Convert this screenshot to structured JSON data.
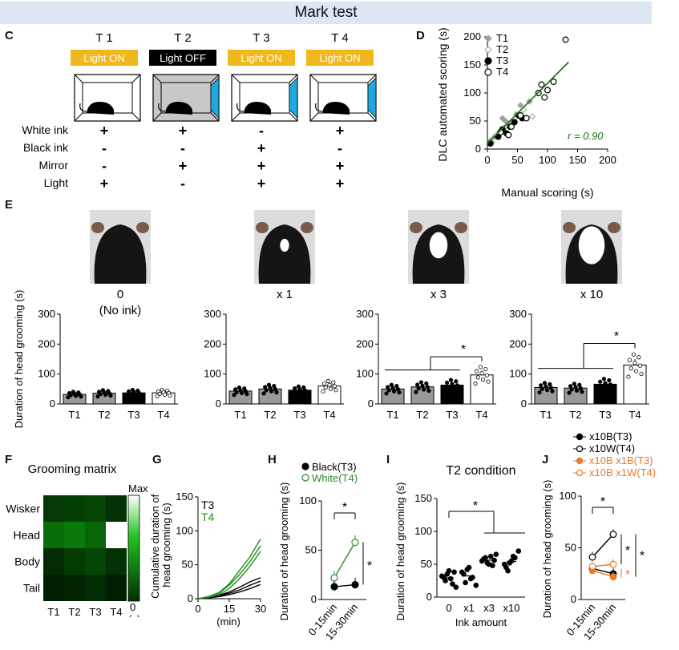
{
  "header": {
    "title": "Mark test"
  },
  "panel_labels": {
    "c": "C",
    "d": "D",
    "e": "E",
    "f": "F",
    "g": "G",
    "h": "H",
    "i": "I",
    "j": "J"
  },
  "panel_c": {
    "trials": [
      {
        "label": "T 1",
        "light": "Light ON",
        "light_color": "#f0b81c",
        "box_fill": "#ffffff",
        "mirror": false
      },
      {
        "label": "T 2",
        "light": "Light OFF",
        "light_color": "#000000",
        "box_fill": "#c8c8c8",
        "mirror": true
      },
      {
        "label": "T 3",
        "light": "Light ON",
        "light_color": "#f0b81c",
        "box_fill": "#ffffff",
        "mirror": true
      },
      {
        "label": "T 4",
        "light": "Light ON",
        "light_color": "#f0b81c",
        "box_fill": "#ffffff",
        "mirror": true
      }
    ],
    "rows": [
      {
        "label": "White ink",
        "values": [
          "+",
          "+",
          "-",
          "+"
        ]
      },
      {
        "label": "Black ink",
        "values": [
          "-",
          "-",
          "+",
          "-"
        ]
      },
      {
        "label": "Mirror",
        "values": [
          "-",
          "+",
          "+",
          "+"
        ]
      },
      {
        "label": "Light",
        "values": [
          "+",
          "-",
          "+",
          "+"
        ]
      }
    ]
  },
  "chart_data": [
    {
      "id": "D",
      "type": "scatter",
      "xlabel": "Manual scoring (s)",
      "ylabel": "DLC automated scoring (s)",
      "xlim": [
        0,
        200
      ],
      "ylim": [
        0,
        200
      ],
      "xticks": [
        "0",
        "50",
        "100",
        "150",
        "200"
      ],
      "yticks": [
        "0",
        "50",
        "100",
        "150",
        "200"
      ],
      "annotation": "r = 0.90",
      "legend": [
        "T1",
        "T2",
        "T3",
        "T4"
      ],
      "legend_position": "top-left",
      "fit_line": {
        "x": [
          0,
          135
        ],
        "y": [
          10,
          155
        ]
      },
      "series": [
        {
          "name": "T1",
          "marker": "diamond",
          "color": "#a0a0a0",
          "points": [
            [
              5,
              15
            ],
            [
              12,
              22
            ],
            [
              20,
              30
            ],
            [
              25,
              55
            ],
            [
              30,
              50
            ],
            [
              48,
              62
            ],
            [
              55,
              78
            ],
            [
              70,
              85
            ]
          ]
        },
        {
          "name": "T2",
          "marker": "open-diamond",
          "color": "#a0a0a0",
          "points": [
            [
              8,
              12
            ],
            [
              15,
              25
            ],
            [
              28,
              38
            ],
            [
              35,
              45
            ],
            [
              42,
              48
            ],
            [
              60,
              70
            ],
            [
              75,
              58
            ]
          ]
        },
        {
          "name": "T3",
          "marker": "filled-circle",
          "color": "#000000",
          "points": [
            [
              5,
              10
            ],
            [
              18,
              22
            ],
            [
              25,
              35
            ],
            [
              32,
              28
            ],
            [
              38,
              40
            ],
            [
              45,
              48
            ],
            [
              52,
              60
            ],
            [
              58,
              55
            ]
          ]
        },
        {
          "name": "T4",
          "marker": "open-circle",
          "color": "#000000",
          "points": [
            [
              22,
              30
            ],
            [
              35,
              25
            ],
            [
              40,
              40
            ],
            [
              55,
              60
            ],
            [
              65,
              55
            ],
            [
              85,
              100
            ],
            [
              90,
              115
            ],
            [
              95,
              92
            ],
            [
              100,
              105
            ],
            [
              110,
              120
            ],
            [
              130,
              195
            ]
          ]
        }
      ]
    },
    {
      "id": "E",
      "type": "bar",
      "ylabel": "Duration of head grooming (s)",
      "ylim": [
        0,
        300
      ],
      "yticks": [
        "0",
        "100",
        "200",
        "300"
      ],
      "categories": [
        "T1",
        "T2",
        "T3",
        "T4"
      ],
      "conditions": [
        {
          "label": "0",
          "sublabel": "(No ink)",
          "values": [
            32,
            36,
            37,
            37
          ],
          "sig": "",
          "mark_width": 0
        },
        {
          "label": "x 1",
          "sublabel": "",
          "values": [
            43,
            50,
            46,
            60
          ],
          "sig": "",
          "mark_width": 18
        },
        {
          "label": "x 3",
          "sublabel": "",
          "values": [
            50,
            57,
            63,
            97
          ],
          "sig": "*",
          "mark_width": 36
        },
        {
          "label": "x 10",
          "sublabel": "",
          "values": [
            55,
            53,
            66,
            130
          ],
          "sig": "*",
          "mark_width": 52
        }
      ]
    },
    {
      "id": "F",
      "type": "heatmap",
      "title": "Grooming matrix",
      "rows": [
        "Wisker",
        "Head",
        "Body",
        "Tail"
      ],
      "columns": [
        "T1",
        "T2",
        "T3",
        "T4"
      ],
      "values": [
        [
          0.18,
          0.22,
          0.25,
          0.15
        ],
        [
          0.45,
          0.5,
          0.4,
          1.0
        ],
        [
          0.12,
          0.2,
          0.25,
          0.15
        ],
        [
          0.05,
          0.08,
          0.12,
          0.05
        ]
      ],
      "colorbar": {
        "max_label": "Max",
        "min_label": "0",
        "unit": "(s)"
      }
    },
    {
      "id": "G",
      "type": "line",
      "ylabel": "Cumulative duration of head grooming (s)",
      "xlabel": "(min)",
      "xlim": [
        0,
        30
      ],
      "ylim": [
        0,
        150
      ],
      "xticks": [
        "0",
        "15",
        "30"
      ],
      "yticks": [
        "0",
        "50",
        "100",
        "150"
      ],
      "legend": [
        {
          "name": "T3",
          "color": "#000000"
        },
        {
          "name": "T4",
          "color": "#1f8a1f"
        }
      ],
      "series": [
        {
          "name": "T3",
          "color": "#000000",
          "points": [
            [
              0,
              0
            ],
            [
              5,
              2
            ],
            [
              10,
              5
            ],
            [
              15,
              10
            ],
            [
              20,
              17
            ],
            [
              25,
              25
            ],
            [
              30,
              31
            ]
          ]
        },
        {
          "name": "T3",
          "color": "#000000",
          "points": [
            [
              0,
              0
            ],
            [
              5,
              1
            ],
            [
              10,
              4
            ],
            [
              15,
              8
            ],
            [
              20,
              13
            ],
            [
              25,
              20
            ],
            [
              30,
              26
            ]
          ]
        },
        {
          "name": "T3",
          "color": "#000000",
          "points": [
            [
              0,
              0
            ],
            [
              5,
              1
            ],
            [
              10,
              3
            ],
            [
              15,
              6
            ],
            [
              20,
              10
            ],
            [
              25,
              15
            ],
            [
              30,
              21
            ]
          ]
        },
        {
          "name": "T4",
          "color": "#1f8a1f",
          "points": [
            [
              0,
              0
            ],
            [
              5,
              3
            ],
            [
              10,
              9
            ],
            [
              15,
              22
            ],
            [
              20,
              42
            ],
            [
              25,
              62
            ],
            [
              30,
              88
            ]
          ]
        },
        {
          "name": "T4",
          "color": "#1f8a1f",
          "points": [
            [
              0,
              0
            ],
            [
              5,
              3
            ],
            [
              10,
              8
            ],
            [
              15,
              20
            ],
            [
              20,
              36
            ],
            [
              25,
              55
            ],
            [
              30,
              78
            ]
          ]
        },
        {
          "name": "T4",
          "color": "#1f8a1f",
          "points": [
            [
              0,
              0
            ],
            [
              5,
              2
            ],
            [
              10,
              6
            ],
            [
              15,
              15
            ],
            [
              20,
              30
            ],
            [
              25,
              48
            ],
            [
              30,
              70
            ]
          ]
        }
      ]
    },
    {
      "id": "H",
      "type": "line",
      "ylabel": "Duration of head grooming (s)",
      "ylim": [
        0,
        100
      ],
      "yticks": [
        "0",
        "50",
        "100"
      ],
      "categories": [
        "0-15min",
        "15-30min"
      ],
      "series": [
        {
          "name": "Black(T3)",
          "marker": "filled-circle",
          "color": "#000000",
          "values": [
            13,
            15
          ]
        },
        {
          "name": "White(T4)",
          "marker": "open-circle",
          "color": "#2e8b2e",
          "values": [
            22,
            58
          ]
        }
      ],
      "sig": [
        "*",
        "*"
      ]
    },
    {
      "id": "I",
      "type": "scatter",
      "title": "T2 condition",
      "xlabel": "Ink amount",
      "ylabel": "Duration of head grooming (s)",
      "ylim": [
        0,
        150
      ],
      "yticks": [
        "0",
        "50",
        "100",
        "150"
      ],
      "categories": [
        "0",
        "x1",
        "x3",
        "x10"
      ],
      "points": [
        [
          32,
          25,
          40,
          20,
          15,
          30,
          35,
          28,
          38
        ],
        [
          38,
          22,
          45,
          30,
          18,
          35,
          42,
          28
        ],
        [
          55,
          60,
          50,
          48,
          65,
          58,
          52,
          62,
          56
        ],
        [
          50,
          40,
          55,
          60,
          70,
          45,
          52,
          62
        ]
      ],
      "sig": "*"
    },
    {
      "id": "J",
      "type": "line",
      "ylabel": "Duration of head grooming (s)",
      "ylim": [
        0,
        100
      ],
      "yticks": [
        "0",
        "50",
        "100"
      ],
      "categories": [
        "0-15min",
        "15-30min"
      ],
      "series": [
        {
          "name": "x10B(T3)",
          "marker": "filled-circle",
          "color": "#000000",
          "values": [
            30,
            25
          ]
        },
        {
          "name": "x10W(T4)",
          "marker": "open-circle",
          "color": "#000000",
          "values": [
            41,
            63
          ]
        },
        {
          "name": "x10B x1B(T3)",
          "marker": "filled-circle",
          "color": "#e87a2a",
          "values": [
            28,
            22
          ]
        },
        {
          "name": "x10B x1W(T4)",
          "marker": "open-circle",
          "color": "#e87a2a",
          "values": [
            32,
            34
          ]
        }
      ],
      "sig": [
        "*",
        "*",
        "*",
        "*"
      ]
    }
  ]
}
